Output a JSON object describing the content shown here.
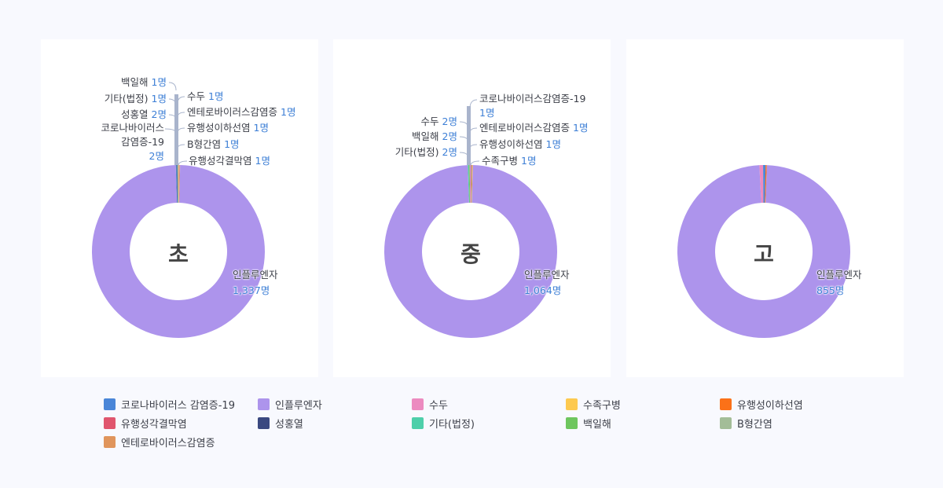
{
  "chart_data": [
    {
      "type": "pie",
      "variant": "donut",
      "title": "초",
      "center_label": "초",
      "slices": [
        {
          "name": "인플루엔자",
          "value": 1337,
          "color": "#ad94ec"
        },
        {
          "name": "코로나바이러스 감염증-19",
          "value": 2,
          "color": "#4a86d8"
        },
        {
          "name": "성홍열",
          "value": 2,
          "color": "#3a4880"
        },
        {
          "name": "기타(법정)",
          "value": 1,
          "color": "#4ecfaa"
        },
        {
          "name": "백일해",
          "value": 1,
          "color": "#6ec65e"
        },
        {
          "name": "수두",
          "value": 1,
          "color": "#ec8bc0"
        },
        {
          "name": "엔테로바이러스감염증",
          "value": 1,
          "color": "#e0955c"
        },
        {
          "name": "유행성이하선염",
          "value": 1,
          "color": "#fb7118"
        },
        {
          "name": "B형간염",
          "value": 1,
          "color": "#a3bd98"
        },
        {
          "name": "유행성각결막염",
          "value": 1,
          "color": "#e0566e"
        }
      ]
    },
    {
      "type": "pie",
      "variant": "donut",
      "title": "중",
      "center_label": "중",
      "slices": [
        {
          "name": "인플루엔자",
          "value": 1064,
          "color": "#ad94ec"
        },
        {
          "name": "기타(법정)",
          "value": 2,
          "color": "#4ecfaa"
        },
        {
          "name": "백일해",
          "value": 2,
          "color": "#6ec65e"
        },
        {
          "name": "수두",
          "value": 2,
          "color": "#ec8bc0"
        },
        {
          "name": "코로나바이러스 감염증-19",
          "value": 1,
          "color": "#4a86d8"
        },
        {
          "name": "엔테로바이러스감염증",
          "value": 1,
          "color": "#e0955c"
        },
        {
          "name": "유행성이하선염",
          "value": 1,
          "color": "#fb7118"
        },
        {
          "name": "수족구병",
          "value": 1,
          "color": "#fdc94f"
        }
      ]
    },
    {
      "type": "pie",
      "variant": "donut",
      "title": "고",
      "center_label": "고",
      "slices": [
        {
          "name": "인플루엔자",
          "value": 855,
          "color": "#ad94ec"
        },
        {
          "name": "수두",
          "value": 6,
          "color": "#ec8bc0"
        },
        {
          "name": "코로나바이러스 감염증-19",
          "value": 4,
          "color": "#4a86d8"
        },
        {
          "name": "유행성이하선염",
          "value": 2,
          "color": "#fb7118"
        }
      ]
    }
  ],
  "panels": [
    {
      "center_label": "초",
      "main_label": {
        "name": "인플루엔자",
        "value": "1,337명"
      },
      "left_labels": [
        {
          "name": "백일해",
          "value": "1명"
        },
        {
          "name": "기타(법정)",
          "value": "1명"
        },
        {
          "name": "성홍열",
          "value": "2명"
        },
        {
          "name": "코로나바이러스",
          "name2": "감염증-19",
          "value": "2명"
        }
      ],
      "right_labels": [
        {
          "name": "수두",
          "value": "1명"
        },
        {
          "name": "엔테로바이러스감염증",
          "value": "1명"
        },
        {
          "name": "유행성이하선염",
          "value": "1명"
        },
        {
          "name": "B형간염",
          "value": "1명"
        },
        {
          "name": "유행성각결막염",
          "value": " 1명"
        }
      ]
    },
    {
      "center_label": "중",
      "main_label": {
        "name": "인플루엔자",
        "value": "1,064명"
      },
      "left_labels": [
        {
          "name": "수두",
          "value": "2명"
        },
        {
          "name": "백일해",
          "value": "2명"
        },
        {
          "name": "기타(법정)",
          "value": "2명"
        }
      ],
      "right_labels": [
        {
          "name": "코로나바이러스감염증-19",
          "value": "1명"
        },
        {
          "name": "엔테로바이러스감염증",
          "value": "1명"
        },
        {
          "name": "유행성이하선염",
          "value": "1명"
        },
        {
          "name": "수족구병",
          "value": "1명"
        }
      ]
    },
    {
      "center_label": "고",
      "main_label": {
        "name": "인플루엔자",
        "value": "855명"
      }
    }
  ],
  "legend": [
    {
      "label": "코로나바이러스 감염증-19",
      "color": "#4a86d8"
    },
    {
      "label": "인플루엔자",
      "color": "#ad94ec"
    },
    {
      "label": "수두",
      "color": "#ec8bc0"
    },
    {
      "label": "수족구병",
      "color": "#fdc94f"
    },
    {
      "label": "유행성이하선염",
      "color": "#fb7118"
    },
    {
      "label": "유행성각결막염",
      "color": "#e0566e"
    },
    {
      "label": "성홍열",
      "color": "#3a4880"
    },
    {
      "label": "기타(법정)",
      "color": "#4ecfaa"
    },
    {
      "label": "백일해",
      "color": "#6ec65e"
    },
    {
      "label": "B형간염",
      "color": "#a3bd98"
    },
    {
      "label": "엔테로바이러스감염증",
      "color": "#e0955c"
    }
  ]
}
